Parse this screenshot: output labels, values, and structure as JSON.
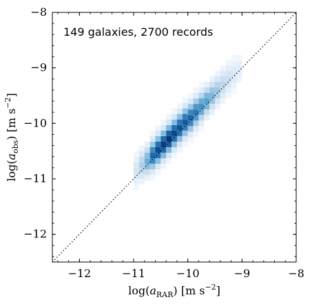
{
  "chart_data": {
    "type": "heatmap",
    "annotation": "149 galaxies, 2700 records",
    "xlabel": "log(a_RAR) [m s^-2]",
    "ylabel": "log(a_obs) [m s^-2]",
    "xlim": [
      -12.5,
      -8
    ],
    "ylim": [
      -12.5,
      -8
    ],
    "x_ticks": [
      -12,
      -11,
      -10,
      -9,
      -8
    ],
    "y_ticks": [
      -12,
      -11,
      -10,
      -9,
      -8
    ],
    "tick_labels_x": [
      "−12",
      "−11",
      "−10",
      "−9",
      "−8"
    ],
    "tick_labels_y": [
      "−12",
      "−11",
      "−10",
      "−9",
      "−8"
    ],
    "reference_line": {
      "style": "dotted",
      "from": [
        -12.5,
        -12.5
      ],
      "to": [
        -8,
        -8
      ]
    },
    "colormap": "Blues",
    "bin_width": 0.1,
    "density_ridge": [
      {
        "x": -10.95,
        "y_center": -10.85,
        "peak": 0.18
      },
      {
        "x": -10.85,
        "y_center": -10.75,
        "peak": 0.32
      },
      {
        "x": -10.75,
        "y_center": -10.68,
        "peak": 0.5
      },
      {
        "x": -10.65,
        "y_center": -10.58,
        "peak": 0.78
      },
      {
        "x": -10.55,
        "y_center": -10.48,
        "peak": 0.9
      },
      {
        "x": -10.45,
        "y_center": -10.38,
        "peak": 0.95
      },
      {
        "x": -10.35,
        "y_center": -10.28,
        "peak": 0.98
      },
      {
        "x": -10.25,
        "y_center": -10.18,
        "peak": 0.92
      },
      {
        "x": -10.15,
        "y_center": -10.08,
        "peak": 0.88
      },
      {
        "x": -10.05,
        "y_center": -9.98,
        "peak": 0.85
      },
      {
        "x": -9.95,
        "y_center": -9.9,
        "peak": 0.8
      },
      {
        "x": -9.85,
        "y_center": -9.8,
        "peak": 0.72
      },
      {
        "x": -9.75,
        "y_center": -9.7,
        "peak": 0.62
      },
      {
        "x": -9.65,
        "y_center": -9.6,
        "peak": 0.55
      },
      {
        "x": -9.55,
        "y_center": -9.5,
        "peak": 0.45
      },
      {
        "x": -9.45,
        "y_center": -9.4,
        "peak": 0.36
      },
      {
        "x": -9.35,
        "y_center": -9.3,
        "peak": 0.28
      },
      {
        "x": -9.25,
        "y_center": -9.2,
        "peak": 0.22
      },
      {
        "x": -9.15,
        "y_center": -9.12,
        "peak": 0.15
      },
      {
        "x": -9.05,
        "y_center": -9.02,
        "peak": 0.1
      }
    ],
    "grid": false
  }
}
